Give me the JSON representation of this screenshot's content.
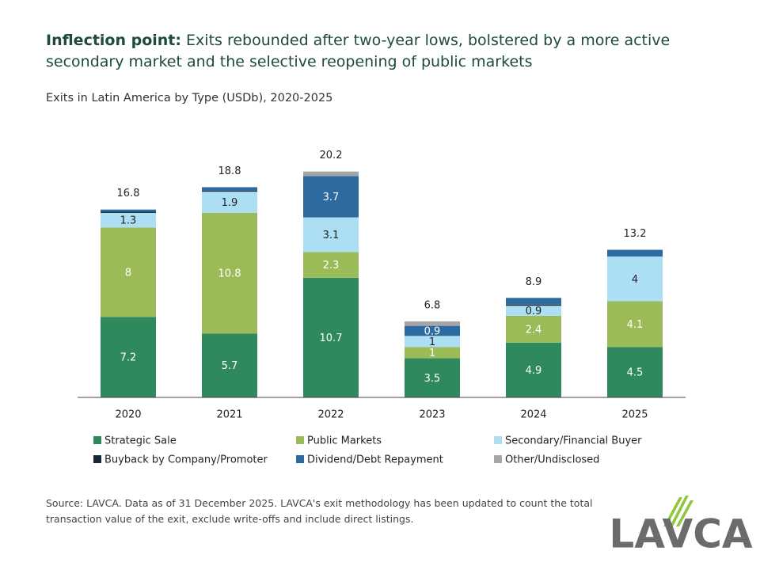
{
  "chart_data": {
    "type": "stacked_bar",
    "title_bold": "Inflection point:",
    "title": "Exits rebounded after two-year lows, bolstered by a more active secondary market and the selective reopening of public markets",
    "subtitle": "Exits in Latin America by Type (USDb), 2020-2025",
    "categories": [
      "2020",
      "2021",
      "2022",
      "2023",
      "2024",
      "2025"
    ],
    "series": [
      {
        "name": "Strategic Sale",
        "color": "#2e8a5c",
        "values": [
          7.2,
          5.7,
          10.7,
          3.5,
          4.9,
          4.5
        ]
      },
      {
        "name": "Public Markets",
        "color": "#9bbb59",
        "values": [
          8.0,
          10.8,
          2.3,
          1.0,
          2.4,
          4.1
        ]
      },
      {
        "name": "Secondary/Financial Buyer",
        "color": "#addff4",
        "values": [
          1.3,
          1.9,
          3.1,
          1.0,
          0.9,
          4.0
        ]
      },
      {
        "name": "Buyback by Company/Promoter",
        "color": "#182838",
        "values": [
          0.1,
          0.1,
          0,
          0,
          0.1,
          0
        ]
      },
      {
        "name": "Dividend/Debt Repayment",
        "color": "#2d6a9f",
        "values": [
          0.2,
          0.3,
          3.7,
          0.9,
          0.6,
          0.6
        ]
      },
      {
        "name": "Other/Undisclosed",
        "color": "#a6a6a6",
        "values": [
          0,
          0,
          0.4,
          0.4,
          0,
          0
        ]
      }
    ],
    "totals": [
      16.8,
      18.8,
      20.2,
      6.8,
      8.9,
      13.2
    ],
    "ylim": [
      0,
      24
    ],
    "source": "Source: LAVCA. Data as of 31 December 2025. LAVCA's exit methodology has been updated to count the total transaction value of the exit, exclude write-offs and include direct listings.",
    "logo": "LAVCA"
  }
}
